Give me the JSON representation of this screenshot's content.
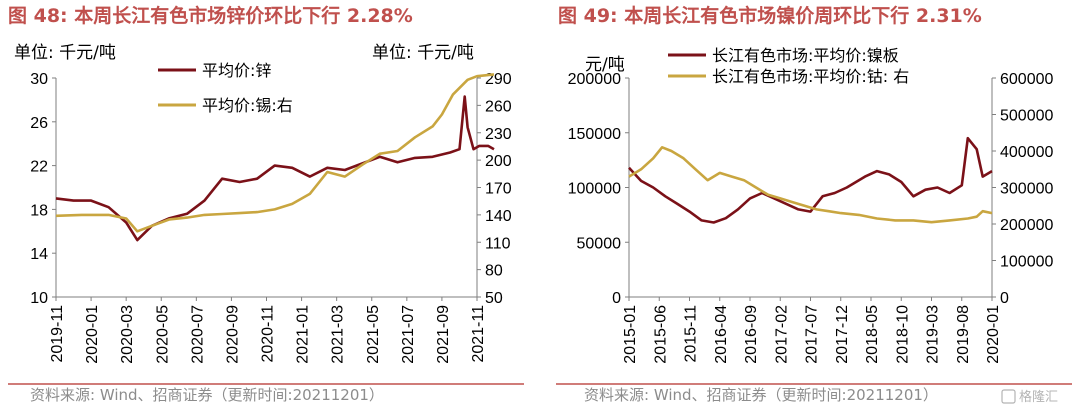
{
  "colors": {
    "title": "#c0504d",
    "series_dark": "#7b1118",
    "series_gold": "#c9a640",
    "axis": "#7f7f7f",
    "rule": "#c0504d",
    "source": "#8c8c8c"
  },
  "watermark": "格隆汇",
  "charts": [
    {
      "title": "图 48: 本周长江有色市场锌价环比下行 2.28%",
      "unit_left": "单位: 千元/吨",
      "unit_right": "单位: 千元/吨",
      "source": "资料来源: Wind、招商证券（更新时间:20211201）"
    },
    {
      "title": "图 49: 本周长江有色市场镍价周环比下行 2.31%",
      "unit_left": "元/吨",
      "source": "资料来源: Wind、招商证券（更新时间:20211201）"
    }
  ],
  "chart_data": [
    {
      "type": "line",
      "x_ticks": [
        "2019-11",
        "2020-01",
        "2020-03",
        "2020-05",
        "2020-07",
        "2020-09",
        "2020-11",
        "2021-01",
        "2021-03",
        "2021-05",
        "2021-07",
        "2021-09",
        "2021-11"
      ],
      "y_left": {
        "min": 10,
        "max": 30,
        "ticks": [
          10,
          14,
          18,
          22,
          26,
          30
        ]
      },
      "y_right": {
        "min": 50,
        "max": 290,
        "ticks": [
          50,
          80,
          110,
          140,
          170,
          200,
          230,
          260,
          290
        ]
      },
      "series": [
        {
          "name": "平均价:锌",
          "axis": "left",
          "color": "#7b1118",
          "x": [
            "2019-11-01",
            "2019-12-01",
            "2020-01-01",
            "2020-02-01",
            "2020-03-01",
            "2020-03-20",
            "2020-04-15",
            "2020-05-15",
            "2020-06-15",
            "2020-07-15",
            "2020-08-15",
            "2020-09-15",
            "2020-10-15",
            "2020-11-15",
            "2020-12-15",
            "2021-01-15",
            "2021-02-15",
            "2021-03-15",
            "2021-04-15",
            "2021-05-15",
            "2021-06-15",
            "2021-07-15",
            "2021-08-15",
            "2021-09-15",
            "2021-10-01",
            "2021-10-10",
            "2021-10-15",
            "2021-10-25",
            "2021-11-05",
            "2021-11-20",
            "2021-11-30"
          ],
          "y": [
            19.0,
            18.8,
            18.8,
            18.2,
            16.8,
            15.2,
            16.5,
            17.2,
            17.6,
            18.8,
            20.8,
            20.5,
            20.8,
            22.0,
            21.8,
            21.0,
            21.8,
            21.6,
            22.2,
            22.8,
            22.3,
            22.7,
            22.8,
            23.2,
            23.5,
            28.3,
            25.5,
            23.5,
            23.8,
            23.8,
            23.5
          ]
        },
        {
          "name": "平均价:锡:右",
          "axis": "right",
          "color": "#c9a640",
          "x": [
            "2019-11-01",
            "2019-12-15",
            "2020-02-01",
            "2020-03-01",
            "2020-03-20",
            "2020-04-15",
            "2020-05-15",
            "2020-06-15",
            "2020-07-15",
            "2020-08-15",
            "2020-09-15",
            "2020-10-15",
            "2020-11-15",
            "2020-12-15",
            "2021-01-15",
            "2021-02-15",
            "2021-03-15",
            "2021-04-15",
            "2021-05-15",
            "2021-06-15",
            "2021-07-15",
            "2021-08-15",
            "2021-09-01",
            "2021-09-20",
            "2021-10-15",
            "2021-11-01",
            "2021-11-30"
          ],
          "y": [
            139,
            140,
            140,
            136,
            122,
            128,
            135,
            137,
            140,
            141,
            142,
            143,
            146,
            152,
            163,
            187,
            182,
            195,
            207,
            210,
            225,
            237,
            250,
            272,
            288,
            292,
            294
          ]
        }
      ]
    },
    {
      "type": "line",
      "x_ticks": [
        "2015-01",
        "2015-06",
        "2015-11",
        "2016-04",
        "2016-09",
        "2017-02",
        "2017-07",
        "2017-12",
        "2018-05",
        "2018-10",
        "2019-03",
        "2019-08",
        "2020-01"
      ],
      "y_left": {
        "min": 0,
        "max": 200000,
        "ticks": [
          0,
          50000,
          100000,
          150000,
          200000
        ]
      },
      "y_right": {
        "min": 0,
        "max": 600000,
        "ticks": [
          0,
          100000,
          200000,
          300000,
          400000,
          500000,
          600000
        ]
      },
      "series": [
        {
          "name": "长江有色市场:平均价:镍板",
          "axis": "left",
          "color": "#7b1118",
          "x": [
            "2015-01-01",
            "2015-03-01",
            "2015-05-01",
            "2015-07-01",
            "2015-09-01",
            "2015-11-01",
            "2016-01-01",
            "2016-03-01",
            "2016-05-01",
            "2016-07-01",
            "2016-09-01",
            "2016-11-01",
            "2017-01-01",
            "2017-03-01",
            "2017-05-01",
            "2017-07-01",
            "2017-09-01",
            "2017-11-01",
            "2018-01-01",
            "2018-04-01",
            "2018-06-01",
            "2018-08-01",
            "2018-10-01",
            "2018-12-01",
            "2019-02-01",
            "2019-04-01",
            "2019-06-01",
            "2019-08-01",
            "2019-09-01",
            "2019-10-15",
            "2019-11-15",
            "2020-01-01"
          ],
          "y": [
            118000,
            106000,
            100000,
            92000,
            85000,
            78000,
            70000,
            68000,
            72000,
            80000,
            90000,
            95000,
            90000,
            85000,
            80000,
            78000,
            92000,
            95000,
            100000,
            110000,
            115000,
            112000,
            105000,
            92000,
            98000,
            100000,
            95000,
            102000,
            145000,
            135000,
            110000,
            115000
          ]
        },
        {
          "name": "长江有色市场:平均价:钴: 右",
          "axis": "right",
          "color": "#c9a640",
          "x": [
            "2015-01-01",
            "2015-03-01",
            "2015-05-01",
            "2015-06-15",
            "2015-08-01",
            "2015-10-01",
            "2015-12-01",
            "2016-02-01",
            "2016-04-01",
            "2016-06-01",
            "2016-08-01",
            "2016-10-01",
            "2016-12-01",
            "2017-02-01",
            "2017-04-01",
            "2017-06-01",
            "2017-08-01",
            "2017-10-01",
            "2017-12-01",
            "2018-03-01",
            "2018-06-01",
            "2018-09-01",
            "2018-12-01",
            "2019-03-01",
            "2019-06-01",
            "2019-09-01",
            "2019-10-15",
            "2019-11-15",
            "2020-01-01"
          ],
          "y": [
            330000,
            350000,
            380000,
            410000,
            400000,
            380000,
            350000,
            320000,
            340000,
            330000,
            320000,
            300000,
            280000,
            270000,
            260000,
            250000,
            240000,
            235000,
            230000,
            225000,
            215000,
            210000,
            210000,
            205000,
            210000,
            215000,
            220000,
            235000,
            230000
          ]
        }
      ]
    }
  ]
}
